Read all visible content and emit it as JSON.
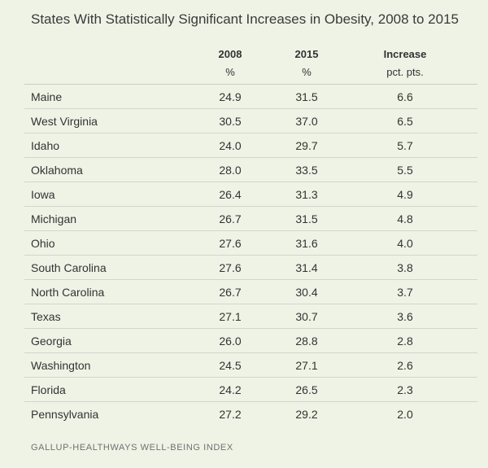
{
  "title": "States With Statistically Significant Increases in Obesity, 2008 to 2015",
  "columns": {
    "y2008": {
      "label": "2008",
      "unit": "%"
    },
    "y2015": {
      "label": "2015",
      "unit": "%"
    },
    "increase": {
      "label": "Increase",
      "unit": "pct. pts."
    }
  },
  "rows": [
    {
      "state": "Maine",
      "v2008": "24.9",
      "v2015": "31.5",
      "increase": "6.6"
    },
    {
      "state": "West Virginia",
      "v2008": "30.5",
      "v2015": "37.0",
      "increase": "6.5"
    },
    {
      "state": "Idaho",
      "v2008": "24.0",
      "v2015": "29.7",
      "increase": "5.7"
    },
    {
      "state": "Oklahoma",
      "v2008": "28.0",
      "v2015": "33.5",
      "increase": "5.5"
    },
    {
      "state": "Iowa",
      "v2008": "26.4",
      "v2015": "31.3",
      "increase": "4.9"
    },
    {
      "state": "Michigan",
      "v2008": "26.7",
      "v2015": "31.5",
      "increase": "4.8"
    },
    {
      "state": "Ohio",
      "v2008": "27.6",
      "v2015": "31.6",
      "increase": "4.0"
    },
    {
      "state": "South Carolina",
      "v2008": "27.6",
      "v2015": "31.4",
      "increase": "3.8"
    },
    {
      "state": "North Carolina",
      "v2008": "26.7",
      "v2015": "30.4",
      "increase": "3.7"
    },
    {
      "state": "Texas",
      "v2008": "27.1",
      "v2015": "30.7",
      "increase": "3.6"
    },
    {
      "state": "Georgia",
      "v2008": "26.0",
      "v2015": "28.8",
      "increase": "2.8"
    },
    {
      "state": "Washington",
      "v2008": "24.5",
      "v2015": "27.1",
      "increase": "2.6"
    },
    {
      "state": "Florida",
      "v2008": "24.2",
      "v2015": "26.5",
      "increase": "2.3"
    },
    {
      "state": "Pennsylvania",
      "v2008": "27.2",
      "v2015": "29.2",
      "increase": "2.0"
    }
  ],
  "source": "GALLUP-HEALTHWAYS WELL-BEING INDEX"
}
